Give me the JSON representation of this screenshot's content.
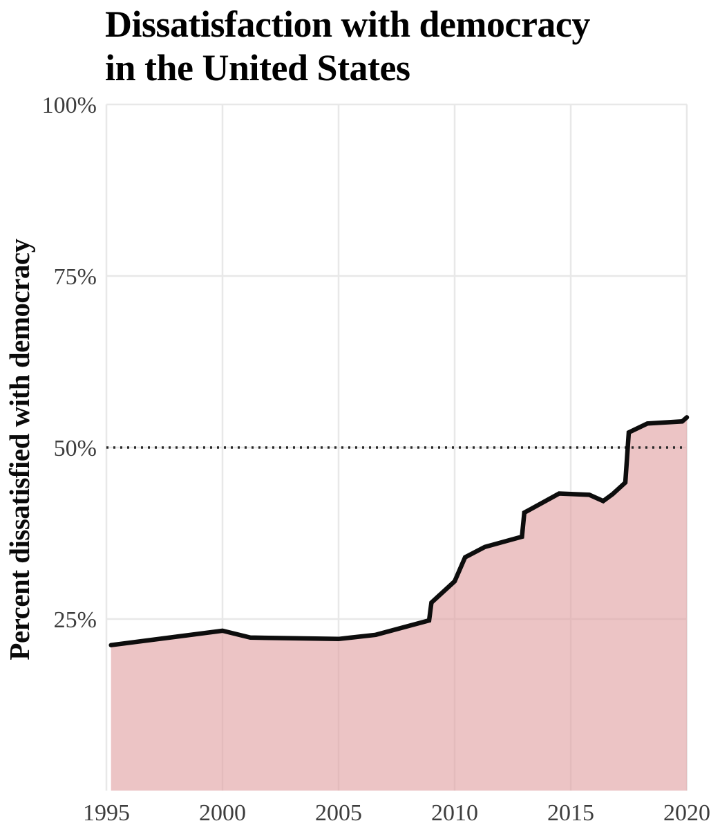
{
  "title": {
    "line1": "Dissatisfaction with democracy",
    "line2": "in the United States"
  },
  "y_axis": {
    "label": "Percent dissatisfied with democracy",
    "ticks": [
      "100%",
      "75%",
      "50%",
      "25%"
    ],
    "tick_values": [
      100,
      75,
      50,
      25
    ],
    "min": 0,
    "max": 100
  },
  "x_axis": {
    "ticks": [
      "1995",
      "2000",
      "2005",
      "2010",
      "2015",
      "2020"
    ],
    "tick_values": [
      1995,
      2000,
      2005,
      2010,
      2015,
      2020
    ],
    "min": 1995,
    "max": 2020
  },
  "colors": {
    "background": "#ffffff",
    "grid": "#e8e8e8",
    "area_fill": "rgba(225,160,162,0.62)",
    "area_fill_flat": "#ecc4c5",
    "data_line": "#0d0d0d",
    "reference_line": "#2a2a2a",
    "tick_text": "#3d3d3d",
    "title_text": "#000000"
  },
  "chart_data": {
    "type": "area",
    "title": "Dissatisfaction with democracy in the United States",
    "xlabel": "",
    "ylabel": "Percent dissatisfied with democracy",
    "xlim": [
      1995,
      2020
    ],
    "ylim": [
      0,
      100
    ],
    "grid": true,
    "legend": "none",
    "reference_line_y": 50,
    "reference_line_style": "dotted",
    "series": [
      {
        "name": "United States",
        "points": [
          [
            1995.2,
            21.2
          ],
          [
            2000.0,
            23.3
          ],
          [
            2001.2,
            22.3
          ],
          [
            2005.0,
            22.1
          ],
          [
            2006.6,
            22.7
          ],
          [
            2008.9,
            24.8
          ],
          [
            2009.0,
            27.4
          ],
          [
            2010.0,
            30.5
          ],
          [
            2010.45,
            34.0
          ],
          [
            2011.3,
            35.5
          ],
          [
            2012.9,
            37.0
          ],
          [
            2013.0,
            40.5
          ],
          [
            2014.5,
            43.3
          ],
          [
            2015.8,
            43.1
          ],
          [
            2016.4,
            42.2
          ],
          [
            2016.8,
            43.2
          ],
          [
            2017.35,
            44.9
          ],
          [
            2017.5,
            52.2
          ],
          [
            2018.3,
            53.5
          ],
          [
            2019.8,
            53.8
          ],
          [
            2020.0,
            54.4
          ]
        ]
      }
    ]
  }
}
